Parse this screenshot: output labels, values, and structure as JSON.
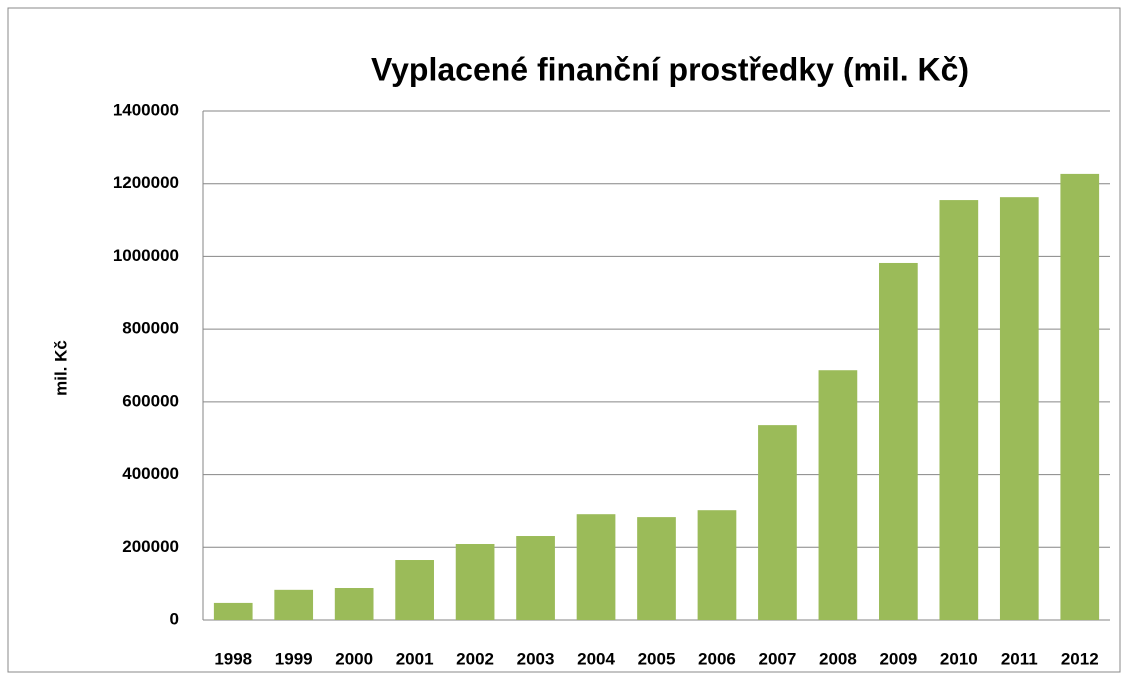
{
  "chart_data": {
    "type": "bar",
    "title": "Vyplacené finanční prostředky (mil. Kč)",
    "y_label": "mil. Kč",
    "categories": [
      "1998",
      "1999",
      "2000",
      "2001",
      "2002",
      "2003",
      "2004",
      "2005",
      "2006",
      "2007",
      "2008",
      "2009",
      "2010",
      "2011",
      "2012"
    ],
    "values": [
      47000,
      83000,
      88000,
      165000,
      209000,
      231000,
      291000,
      283000,
      302000,
      536000,
      687000,
      982000,
      1155000,
      1163000,
      1227000
    ],
    "color": "#9bbb59",
    "ylim": [
      0,
      1400000
    ],
    "yticks": [
      0,
      200000,
      400000,
      600000,
      800000,
      1000000,
      1200000,
      1400000
    ],
    "grid": true
  }
}
